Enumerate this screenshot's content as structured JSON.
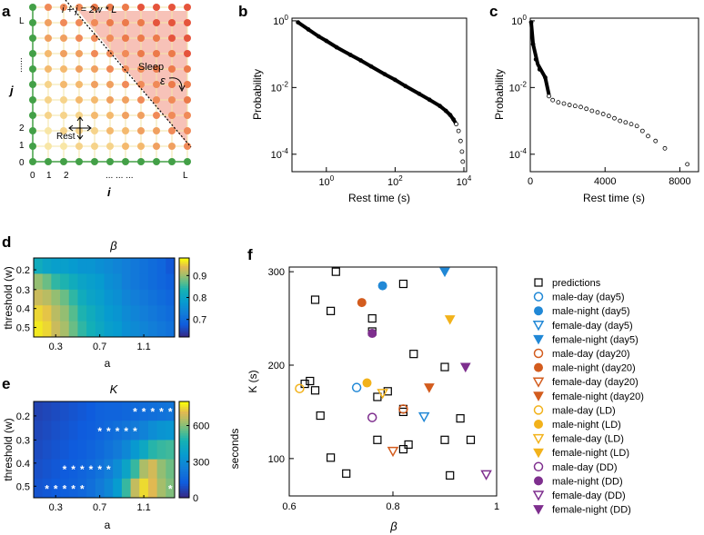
{
  "figure": {
    "panel_labels": [
      "a",
      "b",
      "c",
      "d",
      "e",
      "f"
    ],
    "colors": {
      "grid_line": "#f3e6a6",
      "boundary_node": "#43a047",
      "pred_marker": "#000000",
      "sleep_fill": "#f7c2b8"
    }
  },
  "panel_a": {
    "formula": "i + j = 2w * L",
    "sleep_label": "Sleep",
    "rest_label": "Rest",
    "epsilon_label": "ε",
    "x_title": "i",
    "y_title": "j",
    "x_ticks": [
      "0",
      "1",
      "2",
      "L"
    ],
    "x_dots": "... ... ...",
    "y_ticks": [
      "0",
      "1",
      "2",
      "L"
    ],
    "y_dots": "......",
    "icons": [
      "arrow-icon"
    ]
  },
  "chart_data": [
    {
      "id": "b",
      "type": "scatter",
      "title": "",
      "xlabel": "Rest time (s)",
      "ylabel": "Probability",
      "xscale": "log",
      "yscale": "log",
      "xlim": [
        0.1,
        12000
      ],
      "ylim": [
        3e-05,
        1.2
      ],
      "x_tick_labels": [
        "10^0",
        "10^2",
        "10^4"
      ],
      "y_tick_labels": [
        "10^0",
        "10^-2",
        "10^-4"
      ],
      "x": [
        0.15,
        0.3,
        0.6,
        1,
        2,
        5,
        10,
        20,
        50,
        100,
        200,
        500,
        1000,
        2000,
        3000,
        4000,
        5000,
        6000,
        7000,
        8000,
        8800,
        9300
      ],
      "y": [
        0.9,
        0.55,
        0.34,
        0.25,
        0.16,
        0.095,
        0.065,
        0.043,
        0.025,
        0.017,
        0.011,
        0.0065,
        0.0043,
        0.0028,
        0.002,
        0.0015,
        0.0011,
        0.0008,
        0.0005,
        0.00025,
        0.00012,
        6e-05
      ]
    },
    {
      "id": "c",
      "type": "scatter",
      "title": "",
      "xlabel": "Rest time (s)",
      "ylabel": "Probability",
      "xscale": "linear",
      "yscale": "log",
      "xlim": [
        0,
        9000
      ],
      "ylim": [
        3e-05,
        1.2
      ],
      "x_tick_labels": [
        "0",
        "4000",
        "8000"
      ],
      "y_tick_labels": [
        "10^0",
        "10^-2",
        "10^-4"
      ],
      "x": [
        50,
        150,
        300,
        500,
        800,
        1000,
        1200,
        1500,
        1800,
        2100,
        2400,
        2700,
        3000,
        3300,
        3600,
        3900,
        4200,
        4500,
        4800,
        5100,
        5400,
        5700,
        6000,
        6300,
        6700,
        7200,
        8400
      ],
      "y": [
        0.9,
        0.2,
        0.07,
        0.035,
        0.02,
        0.0055,
        0.0042,
        0.0036,
        0.0033,
        0.003,
        0.0028,
        0.0026,
        0.0023,
        0.002,
        0.0018,
        0.0016,
        0.0014,
        0.0012,
        0.001,
        0.0009,
        0.0008,
        0.0007,
        0.0005,
        0.00035,
        0.00025,
        0.00015,
        5e-05
      ]
    },
    {
      "id": "d",
      "type": "heatmap",
      "title": "β",
      "xlabel": "a",
      "ylabel": "threshold (w)",
      "x_tick_labels": [
        "0.3",
        "0.7",
        "1.1"
      ],
      "y_tick_labels": [
        "0.2",
        "0.3",
        "0.4",
        "0.5"
      ],
      "colorbar_ticks": [
        0.7,
        0.8,
        0.9
      ],
      "clim": [
        0.62,
        0.98
      ],
      "values": [
        [
          0.82,
          0.8,
          0.79,
          0.79,
          0.78,
          0.77,
          0.77,
          0.76,
          0.75,
          0.74,
          0.73,
          0.72,
          0.71,
          0.7,
          0.69,
          0.67
        ],
        [
          0.9,
          0.88,
          0.85,
          0.84,
          0.82,
          0.8,
          0.79,
          0.78,
          0.76,
          0.75,
          0.73,
          0.72,
          0.71,
          0.7,
          0.69,
          0.68
        ],
        [
          0.93,
          0.92,
          0.9,
          0.88,
          0.85,
          0.82,
          0.8,
          0.79,
          0.77,
          0.76,
          0.74,
          0.73,
          0.72,
          0.71,
          0.7,
          0.69
        ],
        [
          0.96,
          0.95,
          0.92,
          0.9,
          0.87,
          0.84,
          0.82,
          0.8,
          0.78,
          0.77,
          0.75,
          0.74,
          0.73,
          0.72,
          0.71,
          0.7
        ],
        [
          0.97,
          0.96,
          0.93,
          0.91,
          0.88,
          0.85,
          0.83,
          0.81,
          0.79,
          0.78,
          0.76,
          0.75,
          0.74,
          0.73,
          0.72,
          0.71
        ]
      ]
    },
    {
      "id": "e",
      "type": "heatmap",
      "title": "K",
      "xlabel": "a",
      "ylabel": "threshold (w)",
      "colorbar_label": "seconds",
      "x_tick_labels": [
        "0.3",
        "0.7",
        "1.1"
      ],
      "y_tick_labels": [
        "0.2",
        "0.3",
        "0.4",
        "0.5"
      ],
      "colorbar_ticks": [
        0,
        300,
        600
      ],
      "clim": [
        0,
        800
      ],
      "star_marker": "*",
      "values": [
        [
          60,
          70,
          80,
          90,
          100,
          110,
          120,
          140,
          150,
          150,
          160,
          170,
          180,
          190,
          200,
          210
        ],
        [
          70,
          80,
          90,
          100,
          110,
          120,
          130,
          150,
          170,
          190,
          210,
          230,
          260,
          300,
          330,
          340
        ],
        [
          80,
          90,
          100,
          110,
          120,
          130,
          150,
          170,
          200,
          230,
          280,
          350,
          420,
          500,
          520,
          530
        ],
        [
          90,
          100,
          110,
          120,
          130,
          150,
          170,
          200,
          240,
          300,
          400,
          520,
          650,
          700,
          620,
          580
        ],
        [
          100,
          110,
          120,
          130,
          140,
          160,
          190,
          230,
          280,
          360,
          520,
          680,
          760,
          720,
          640,
          600
        ]
      ],
      "stars": [
        [
          0,
          11
        ],
        [
          0,
          12
        ],
        [
          0,
          13
        ],
        [
          0,
          14
        ],
        [
          0,
          15
        ],
        [
          1,
          7
        ],
        [
          1,
          8
        ],
        [
          1,
          9
        ],
        [
          1,
          10
        ],
        [
          1,
          11
        ],
        [
          3,
          3
        ],
        [
          3,
          4
        ],
        [
          3,
          5
        ],
        [
          3,
          6
        ],
        [
          3,
          7
        ],
        [
          3,
          8
        ],
        [
          4,
          1
        ],
        [
          4,
          2
        ],
        [
          4,
          3
        ],
        [
          4,
          4
        ],
        [
          4,
          5
        ],
        [
          4,
          15
        ]
      ]
    },
    {
      "id": "f",
      "type": "scatter",
      "title": "",
      "xlabel": "β",
      "ylabel": "K (s)",
      "xlim": [
        0.6,
        1
      ],
      "ylim": [
        60,
        305
      ],
      "x_tick_labels": [
        "0.6",
        "0.8",
        "1"
      ],
      "y_tick_labels": [
        "100",
        "200",
        "300"
      ],
      "predictions": [
        [
          0.69,
          300
        ],
        [
          0.65,
          270
        ],
        [
          0.68,
          258
        ],
        [
          0.82,
          287
        ],
        [
          0.76,
          250
        ],
        [
          0.76,
          236
        ],
        [
          0.84,
          212
        ],
        [
          0.9,
          198
        ],
        [
          0.64,
          183
        ],
        [
          0.63,
          180
        ],
        [
          0.65,
          173
        ],
        [
          0.79,
          172
        ],
        [
          0.77,
          166
        ],
        [
          0.82,
          153
        ],
        [
          0.82,
          150
        ],
        [
          0.93,
          143
        ],
        [
          0.66,
          146
        ],
        [
          0.77,
          120
        ],
        [
          0.9,
          120
        ],
        [
          0.83,
          115
        ],
        [
          0.82,
          110
        ],
        [
          0.95,
          120
        ],
        [
          0.68,
          101
        ],
        [
          0.71,
          84
        ],
        [
          0.91,
          82
        ]
      ],
      "series": [
        {
          "name": "male-day (day5)",
          "color": "#2188d6",
          "marker": "circle-open",
          "x": 0.73,
          "y": 176
        },
        {
          "name": "male-night (day5)",
          "color": "#2188d6",
          "marker": "circle-filled",
          "x": 0.78,
          "y": 285
        },
        {
          "name": "female-day (day5)",
          "color": "#2188d6",
          "marker": "triangle-open",
          "x": 0.86,
          "y": 145
        },
        {
          "name": "female-night (day5)",
          "color": "#2188d6",
          "marker": "triangle-filled",
          "x": 0.9,
          "y": 300
        },
        {
          "name": "male-day (day20)",
          "color": "#d35c1e",
          "marker": "circle-open",
          "x": 0.82,
          "y": 153
        },
        {
          "name": "male-night (day20)",
          "color": "#d35c1e",
          "marker": "circle-filled",
          "x": 0.74,
          "y": 267
        },
        {
          "name": "female-day (day20)",
          "color": "#d35c1e",
          "marker": "triangle-open",
          "x": 0.8,
          "y": 108
        },
        {
          "name": "female-night (day20)",
          "color": "#d35c1e",
          "marker": "triangle-filled",
          "x": 0.87,
          "y": 176
        },
        {
          "name": "male-day (LD)",
          "color": "#f2b21b",
          "marker": "circle-open",
          "x": 0.62,
          "y": 175
        },
        {
          "name": "male-night (LD)",
          "color": "#f2b21b",
          "marker": "circle-filled",
          "x": 0.75,
          "y": 181
        },
        {
          "name": "female-day (LD)",
          "color": "#f2b21b",
          "marker": "triangle-open",
          "x": 0.78,
          "y": 170
        },
        {
          "name": "female-night (LD)",
          "color": "#f2b21b",
          "marker": "triangle-filled",
          "x": 0.91,
          "y": 249
        },
        {
          "name": "male-day (DD)",
          "color": "#7e2f8e",
          "marker": "circle-open",
          "x": 0.76,
          "y": 144
        },
        {
          "name": "male-night (DD)",
          "color": "#7e2f8e",
          "marker": "circle-filled",
          "x": 0.76,
          "y": 234
        },
        {
          "name": "female-day (DD)",
          "color": "#7e2f8e",
          "marker": "triangle-open",
          "x": 0.98,
          "y": 83
        },
        {
          "name": "female-night (DD)",
          "color": "#7e2f8e",
          "marker": "triangle-filled",
          "x": 0.94,
          "y": 198
        }
      ],
      "legend": {
        "predictions_label": "predictions",
        "placement": "right"
      }
    }
  ]
}
